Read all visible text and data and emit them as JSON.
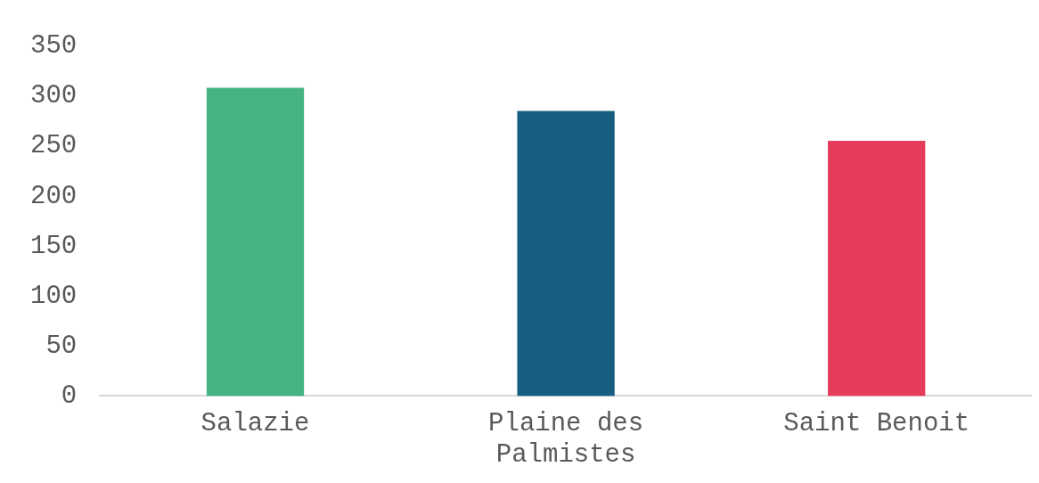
{
  "chart_data": {
    "type": "bar",
    "categories": [
      "Salazie",
      "Plaine des Palmistes",
      "Saint Benoit"
    ],
    "values": [
      308,
      285,
      255
    ],
    "colors": [
      "#45b382",
      "#175f80",
      "#e63c5b"
    ],
    "ylim": [
      0,
      350
    ],
    "yticks": [
      0,
      50,
      100,
      150,
      200,
      250,
      300,
      350
    ],
    "grid": false,
    "legend": false
  }
}
